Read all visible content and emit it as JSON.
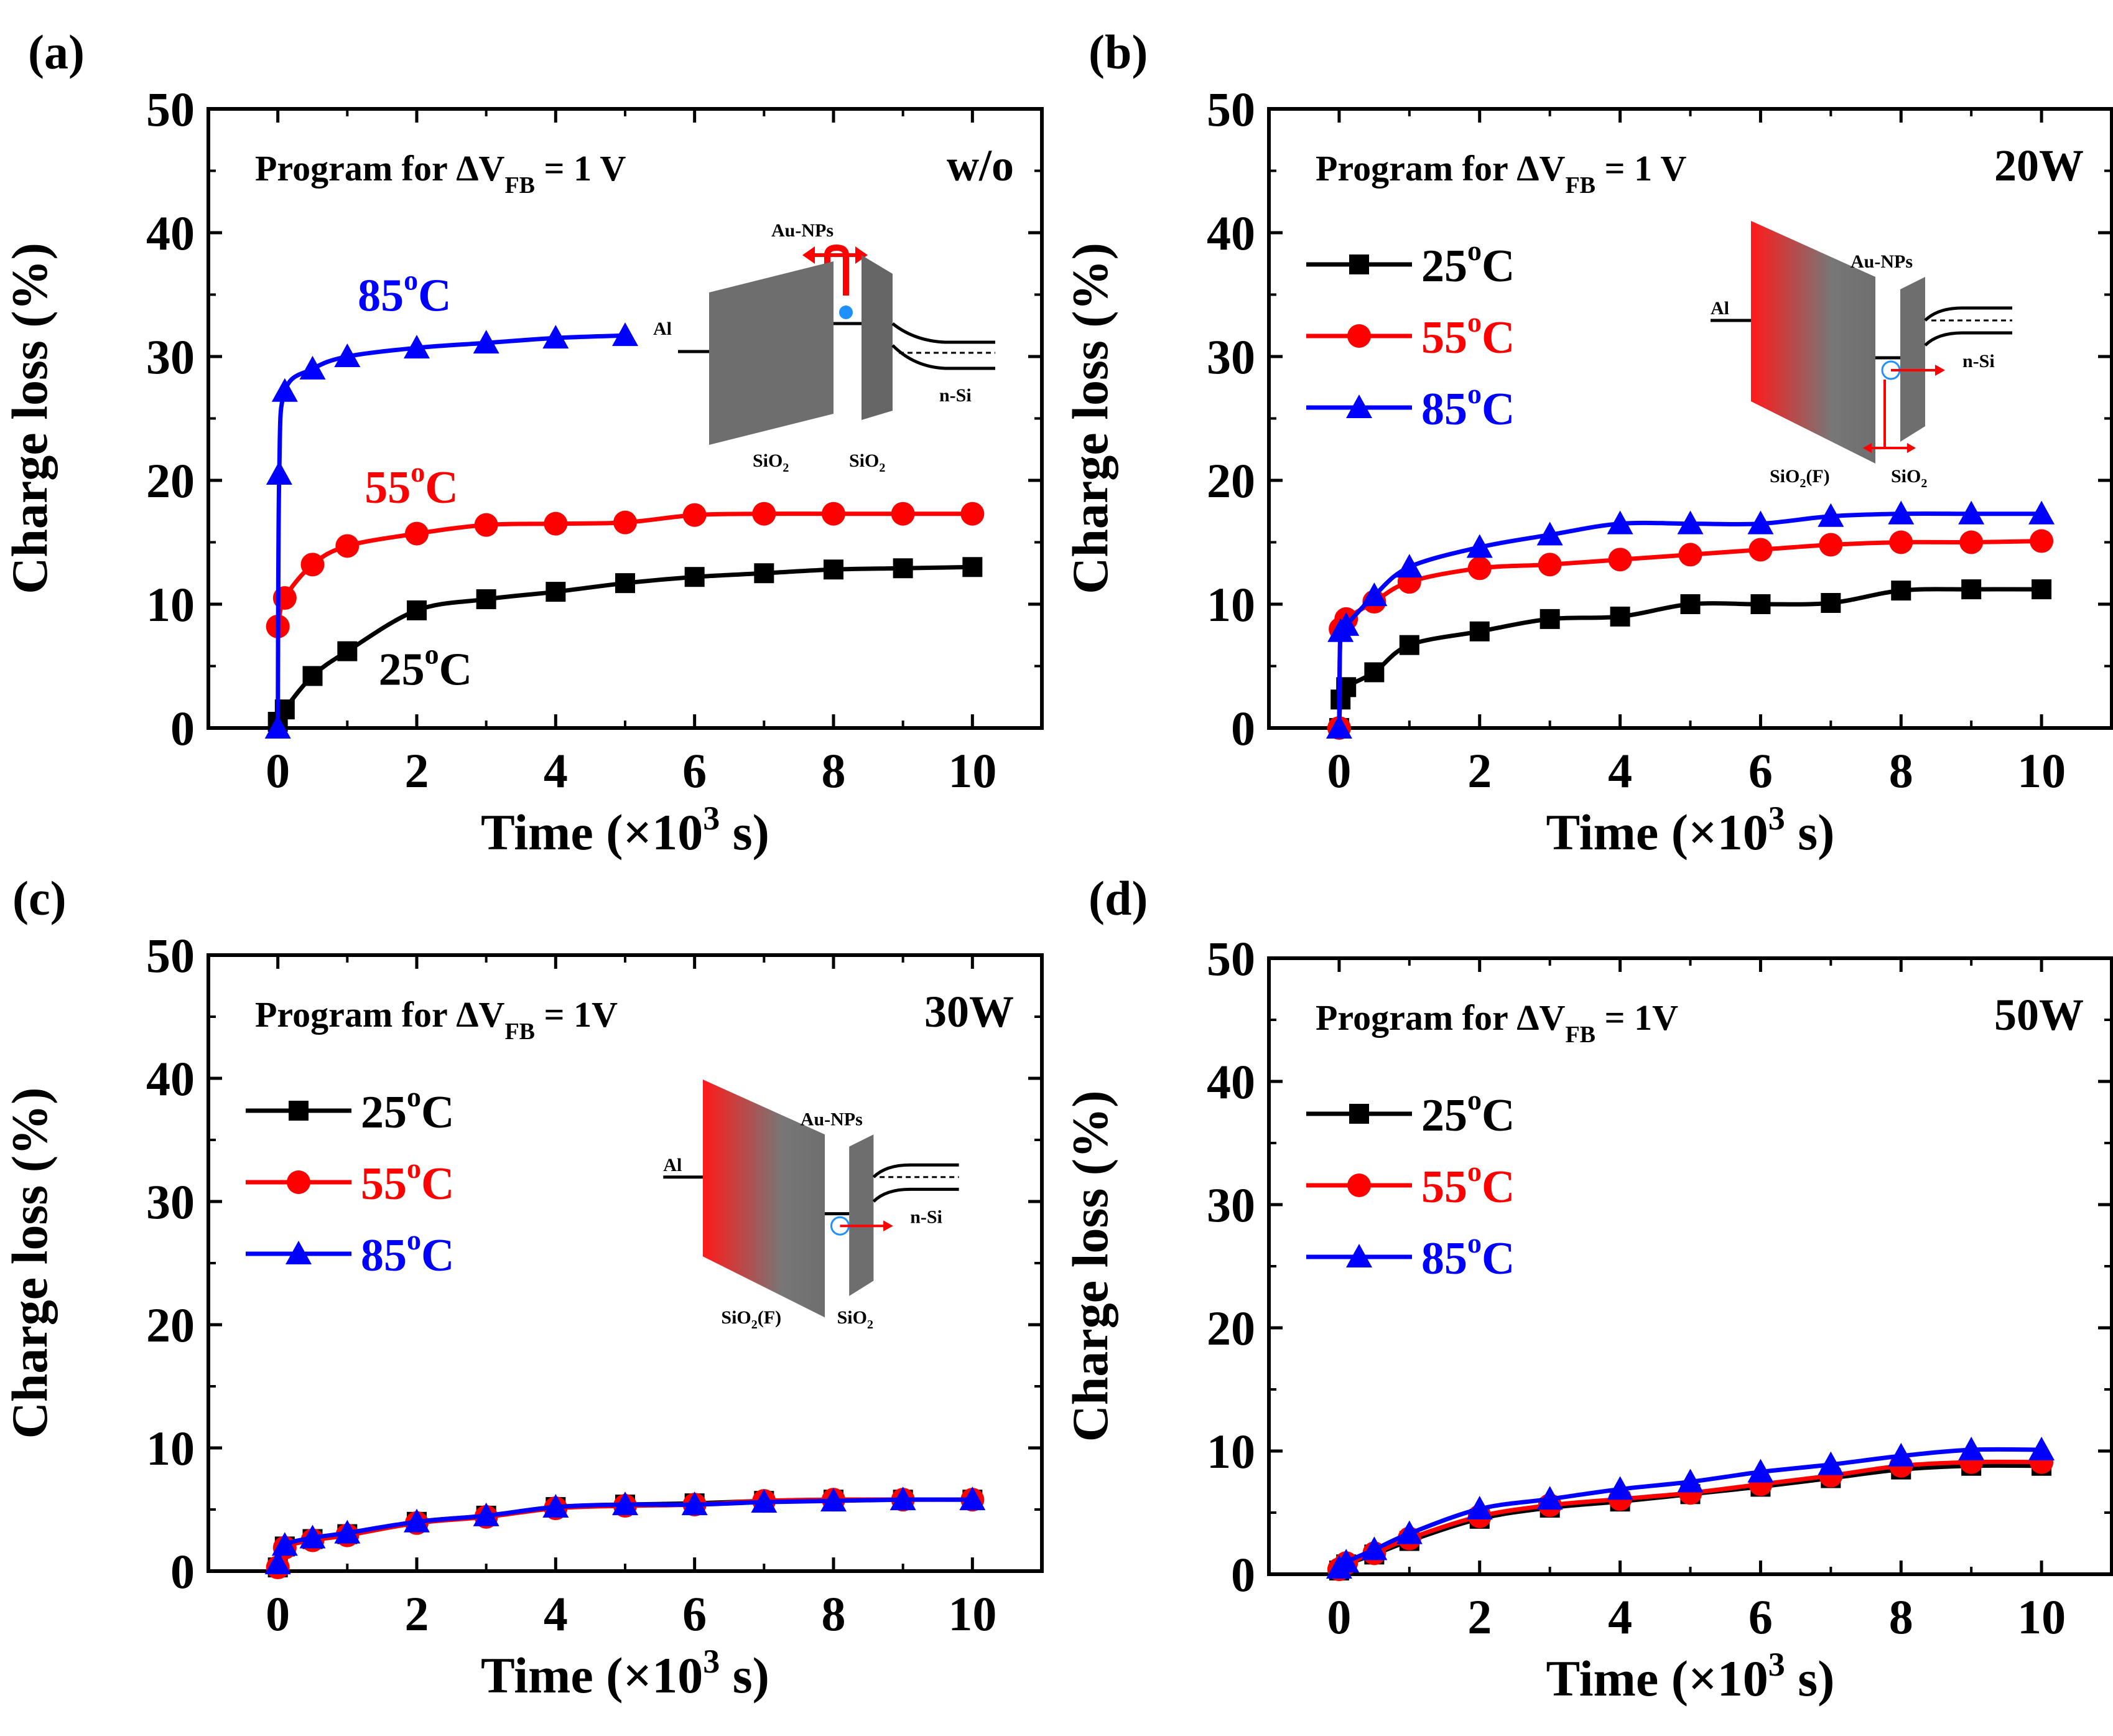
{
  "figure": {
    "panels": [
      {
        "label": "(a)",
        "annotation": "Program for ΔV",
        "annotation_sub": "FB",
        "annotation_tail": " = 1 V",
        "condition": "w/o",
        "legend": "inline",
        "series_labels": [
          "25",
          "55",
          "85"
        ],
        "inset": {
          "type": "a",
          "labels": [
            "Au-NPs",
            "Al",
            "n-Si",
            "SiO",
            "SiO"
          ]
        }
      },
      {
        "label": "(b)",
        "annotation": "Program for ΔV",
        "annotation_sub": "FB",
        "annotation_tail": " = 1 V",
        "condition": "20W",
        "legend": "box",
        "series_labels": [
          "25",
          "55",
          "85"
        ],
        "inset": {
          "type": "b",
          "labels": [
            "Au-NPs",
            "Al",
            "n-Si",
            "SiO",
            "(F)",
            "SiO"
          ]
        }
      },
      {
        "label": "(c)",
        "annotation": "Program for ΔV",
        "annotation_sub": "FB",
        "annotation_tail": " = 1V",
        "condition": "30W",
        "legend": "box",
        "series_labels": [
          "25",
          "55",
          "85"
        ],
        "inset": {
          "type": "c",
          "labels": [
            "Au-NPs",
            "Al",
            "n-Si",
            "SiO",
            "(F)",
            "SiO"
          ]
        }
      },
      {
        "label": "(d)",
        "annotation": "Program for ΔV",
        "annotation_sub": "FB",
        "annotation_tail": " = 1V",
        "condition": "50W",
        "legend": "box",
        "series_labels": [
          "25",
          "55",
          "85"
        ],
        "inset": null
      }
    ]
  },
  "chart_data": [
    {
      "type": "line",
      "panel": "(a)",
      "xlabel": "Time (×10",
      "xlabel_sup": "3",
      "xlabel_tail": " s)",
      "ylabel": "Charge loss (%)",
      "xlim": [
        -1,
        11
      ],
      "ylim": [
        0,
        50
      ],
      "xticks": [
        0,
        2,
        4,
        6,
        8,
        10
      ],
      "yticks": [
        0,
        10,
        20,
        30,
        40,
        50
      ],
      "series": [
        {
          "name": "25°C",
          "color": "#000000",
          "marker": "square",
          "x": [
            0,
            0.1,
            0.5,
            1,
            2,
            3,
            4,
            5,
            6,
            7,
            8,
            9,
            10
          ],
          "y": [
            0.5,
            1.5,
            4.2,
            6.2,
            9.5,
            10.4,
            11.0,
            11.7,
            12.2,
            12.5,
            12.8,
            12.9,
            13.0
          ]
        },
        {
          "name": "55°C",
          "color": "#ff0000",
          "marker": "circle",
          "x": [
            0,
            0.1,
            0.5,
            1,
            2,
            3,
            4,
            5,
            6,
            7,
            8,
            9,
            10
          ],
          "y": [
            8.2,
            10.5,
            13.2,
            14.7,
            15.7,
            16.4,
            16.5,
            16.6,
            17.2,
            17.3,
            17.3,
            17.3,
            17.3
          ]
        },
        {
          "name": "85°C",
          "color": "#0000ff",
          "marker": "triangle",
          "x": [
            0,
            0.02,
            0.1,
            0.5,
            1,
            2,
            3,
            4,
            5
          ],
          "y": [
            0,
            20.5,
            27.2,
            29.0,
            30.0,
            30.7,
            31.1,
            31.5,
            31.7
          ]
        }
      ]
    },
    {
      "type": "line",
      "panel": "(b)",
      "xlabel": "Time (×10",
      "xlabel_sup": "3",
      "xlabel_tail": " s)",
      "ylabel": "Charge loss (%)",
      "xlim": [
        -1,
        11
      ],
      "ylim": [
        0,
        50
      ],
      "xticks": [
        0,
        2,
        4,
        6,
        8,
        10
      ],
      "yticks": [
        0,
        10,
        20,
        30,
        40,
        50
      ],
      "series": [
        {
          "name": "25°C",
          "color": "#000000",
          "marker": "square",
          "x": [
            0,
            0.02,
            0.1,
            0.5,
            1,
            2,
            3,
            4,
            5,
            6,
            7,
            8,
            9,
            10
          ],
          "y": [
            0,
            2.3,
            3.3,
            4.5,
            6.7,
            7.8,
            8.8,
            9.0,
            10.0,
            10.0,
            10.1,
            11.1,
            11.2,
            11.2
          ]
        },
        {
          "name": "55°C",
          "color": "#ff0000",
          "marker": "circle",
          "x": [
            0,
            0.02,
            0.1,
            0.5,
            1,
            2,
            3,
            4,
            5,
            6,
            7,
            8,
            9,
            10
          ],
          "y": [
            0,
            8.0,
            8.8,
            10.2,
            11.8,
            12.9,
            13.2,
            13.6,
            14.0,
            14.4,
            14.8,
            15.0,
            15.0,
            15.1
          ]
        },
        {
          "name": "85°C",
          "color": "#0000ff",
          "marker": "triangle",
          "x": [
            0,
            0.02,
            0.1,
            0.5,
            1,
            2,
            3,
            4,
            5,
            6,
            7,
            8,
            9,
            10
          ],
          "y": [
            0,
            7.8,
            8.3,
            10.7,
            13.0,
            14.6,
            15.6,
            16.5,
            16.5,
            16.5,
            17.1,
            17.3,
            17.3,
            17.3
          ]
        }
      ]
    },
    {
      "type": "line",
      "panel": "(c)",
      "xlabel": "Time (×10",
      "xlabel_sup": "3",
      "xlabel_tail": " s)",
      "ylabel": "Charge loss (%)",
      "xlim": [
        -1,
        11
      ],
      "ylim": [
        0,
        50
      ],
      "xticks": [
        0,
        2,
        4,
        6,
        8,
        10
      ],
      "yticks": [
        0,
        10,
        20,
        30,
        40,
        50
      ],
      "series": [
        {
          "name": "25°C",
          "color": "#000000",
          "marker": "square",
          "x": [
            0,
            0.1,
            0.5,
            1,
            2,
            3,
            4,
            5,
            6,
            7,
            8,
            9,
            10
          ],
          "y": [
            0.3,
            2.0,
            2.6,
            3.0,
            4.0,
            4.5,
            5.2,
            5.4,
            5.5,
            5.7,
            5.8,
            5.8,
            5.8
          ]
        },
        {
          "name": "55°C",
          "color": "#ff0000",
          "marker": "circle",
          "x": [
            0,
            0.1,
            0.5,
            1,
            2,
            3,
            4,
            5,
            6,
            7,
            8,
            9,
            10
          ],
          "y": [
            0.3,
            1.9,
            2.5,
            2.9,
            3.9,
            4.4,
            5.1,
            5.3,
            5.4,
            5.7,
            5.8,
            5.8,
            5.8
          ]
        },
        {
          "name": "85°C",
          "color": "#0000ff",
          "marker": "triangle",
          "x": [
            0,
            0.1,
            0.5,
            1,
            2,
            3,
            4,
            5,
            6,
            7,
            8,
            9,
            10
          ],
          "y": [
            0.6,
            2.1,
            2.7,
            3.1,
            4.0,
            4.5,
            5.2,
            5.4,
            5.4,
            5.6,
            5.7,
            5.8,
            5.8
          ]
        }
      ]
    },
    {
      "type": "line",
      "panel": "(d)",
      "xlabel": "Time (×10",
      "xlabel_sup": "3",
      "xlabel_tail": " s)",
      "ylabel": "Charge loss (%)",
      "xlim": [
        -1,
        11
      ],
      "ylim": [
        0,
        50
      ],
      "xticks": [
        0,
        2,
        4,
        6,
        8,
        10
      ],
      "yticks": [
        0,
        10,
        20,
        30,
        40,
        50
      ],
      "series": [
        {
          "name": "25°C",
          "color": "#000000",
          "marker": "square",
          "x": [
            0,
            0.1,
            0.5,
            1,
            2,
            3,
            4,
            5,
            6,
            7,
            8,
            9,
            10
          ],
          "y": [
            0.3,
            0.8,
            1.6,
            2.7,
            4.5,
            5.4,
            5.9,
            6.5,
            7.1,
            7.8,
            8.5,
            8.8,
            8.8
          ]
        },
        {
          "name": "55°C",
          "color": "#ff0000",
          "marker": "circle",
          "x": [
            0,
            0.1,
            0.5,
            1,
            2,
            3,
            4,
            5,
            6,
            7,
            8,
            9,
            10
          ],
          "y": [
            0.4,
            0.9,
            1.7,
            2.9,
            4.7,
            5.6,
            6.1,
            6.6,
            7.3,
            8.0,
            8.8,
            9.1,
            9.1
          ]
        },
        {
          "name": "85°C",
          "color": "#0000ff",
          "marker": "triangle",
          "x": [
            0,
            0.1,
            0.5,
            1,
            2,
            3,
            4,
            5,
            6,
            7,
            8,
            9,
            10
          ],
          "y": [
            0.5,
            1.0,
            2.0,
            3.3,
            5.3,
            6.1,
            6.9,
            7.5,
            8.3,
            8.9,
            9.6,
            10.1,
            10.1
          ]
        }
      ]
    }
  ]
}
